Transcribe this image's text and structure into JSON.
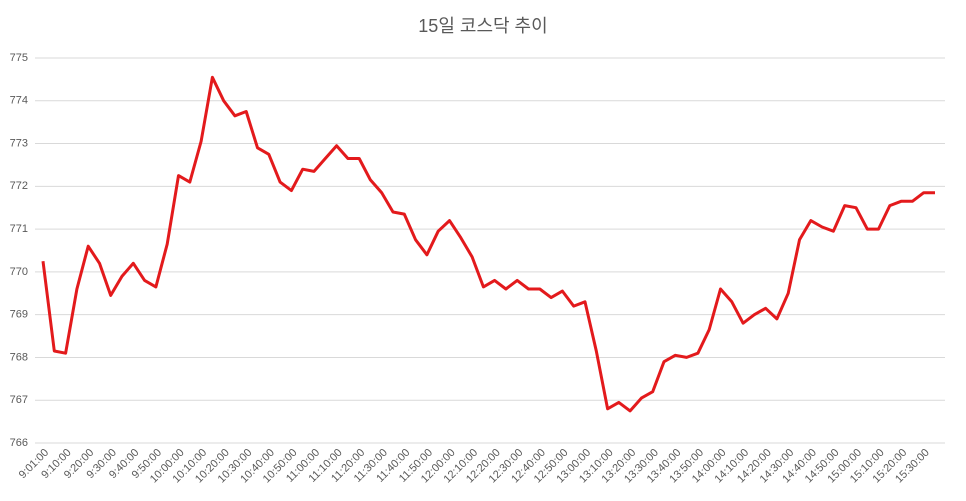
{
  "chart_data": {
    "type": "line",
    "title": "15일 코스닥 추이",
    "categories": [
      "9:01:00",
      null,
      "9:10:00",
      null,
      "9:20:00",
      null,
      "9:30:00",
      null,
      "9:40:00",
      null,
      "9:50:00",
      null,
      "10:00:00",
      null,
      "10:10:00",
      null,
      "10:20:00",
      null,
      "10:30:00",
      null,
      "10:40:00",
      null,
      "10:50:00",
      null,
      "11:00:00",
      null,
      "11:10:00",
      null,
      "11:20:00",
      null,
      "11:30:00",
      null,
      "11:40:00",
      null,
      "11:50:00",
      null,
      "12:00:00",
      null,
      "12:10:00",
      null,
      "12:20:00",
      null,
      "12:30:00",
      null,
      "12:40:00",
      null,
      "12:50:00",
      null,
      "13:00:00",
      null,
      "13:10:00",
      null,
      "13:20:00",
      null,
      "13:30:00",
      null,
      "13:40:00",
      null,
      "13:50:00",
      null,
      "14:00:00",
      null,
      "14:10:00",
      null,
      "14:20:00",
      null,
      "14:30:00",
      null,
      "14:40:00",
      null,
      "14:50:00",
      null,
      "15:00:00",
      null,
      "15:10:00",
      null,
      "15:20:00",
      null,
      "15:30:00",
      null
    ],
    "series": [
      {
        "name": "코스닥",
        "color": "#e31a1c",
        "values": [
          770.25,
          768.15,
          768.1,
          769.6,
          770.6,
          770.2,
          769.45,
          769.9,
          770.2,
          769.8,
          769.65,
          770.65,
          772.25,
          772.1,
          773.05,
          774.55,
          774.0,
          773.65,
          773.75,
          772.9,
          772.75,
          772.1,
          771.9,
          772.4,
          772.35,
          772.65,
          772.95,
          772.65,
          772.65,
          772.15,
          771.85,
          771.4,
          771.35,
          770.75,
          770.4,
          770.95,
          771.2,
          770.8,
          770.35,
          769.65,
          769.8,
          769.6,
          769.8,
          769.6,
          769.6,
          769.4,
          769.55,
          769.2,
          769.3,
          768.15,
          766.8,
          766.95,
          766.75,
          767.05,
          767.2,
          767.9,
          768.05,
          768.0,
          768.1,
          768.65,
          769.6,
          769.3,
          768.8,
          769.0,
          769.15,
          768.9,
          769.5,
          770.75,
          771.2,
          771.05,
          770.95,
          771.55,
          771.5,
          771.0,
          771.0,
          771.55,
          771.65,
          771.65,
          771.85,
          771.85
        ]
      }
    ],
    "ylim": [
      766,
      775
    ],
    "yticks": [
      766,
      767,
      768,
      769,
      770,
      771,
      772,
      773,
      774,
      775
    ],
    "grid": true
  }
}
